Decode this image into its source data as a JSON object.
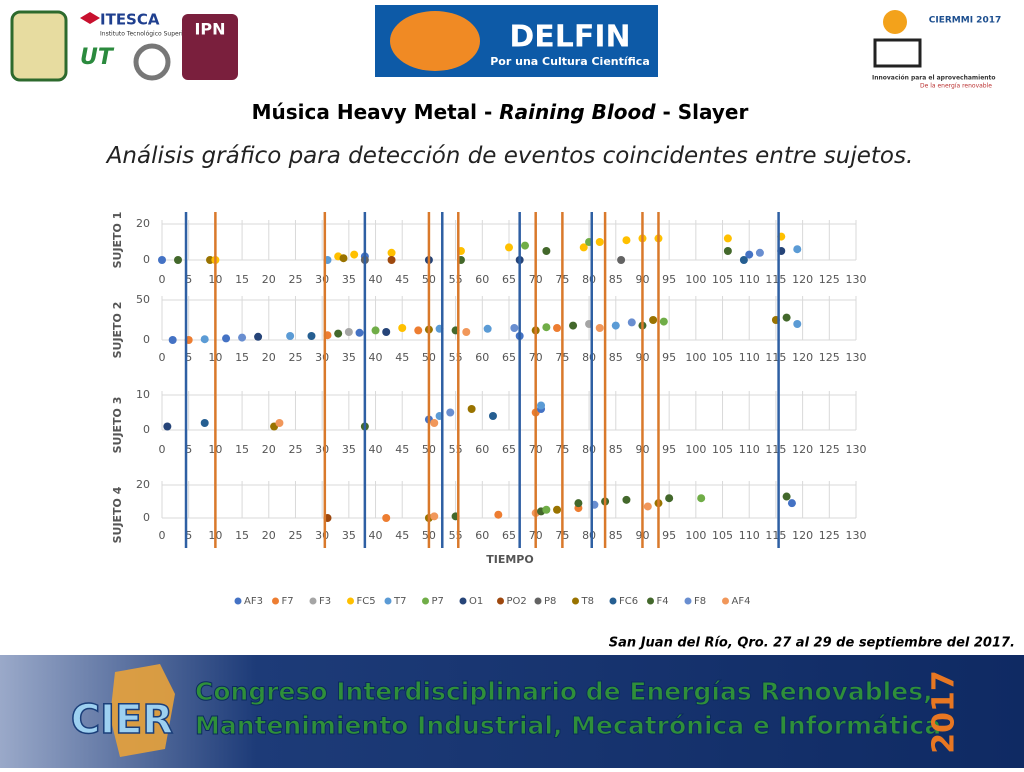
{
  "header": {
    "logo_itesca": "ITESCA",
    "logo_itesca_sub": "Instituto Tecnológico Superior de Cajeme",
    "logo_ut": "UT",
    "logo_ipn": "IPN",
    "delfin": "DELFIN",
    "delfin_sub": "Por una Cultura Científica",
    "ciermmi": "CIERMMI 2017",
    "ciermmi_sub1": "Innovación para el aprovechamiento",
    "ciermmi_sub2": "De la energía renovable"
  },
  "title": {
    "parts": [
      "Música Heavy Metal - ",
      "Raining Blood",
      " - Slayer"
    ]
  },
  "subtitle": "Análisis gráfico para detección de eventos coincidentes entre sujetos.",
  "legend": [
    {
      "name": "AF3",
      "color": "#4472c4"
    },
    {
      "name": "F7",
      "color": "#ed7d31"
    },
    {
      "name": "F3",
      "color": "#a5a5a5"
    },
    {
      "name": "FC5",
      "color": "#ffc000"
    },
    {
      "name": "T7",
      "color": "#5b9bd5"
    },
    {
      "name": "P7",
      "color": "#70ad47"
    },
    {
      "name": "O1",
      "color": "#264478"
    },
    {
      "name": "PO2",
      "color": "#9e480e"
    },
    {
      "name": "P8",
      "color": "#636363"
    },
    {
      "name": "T8",
      "color": "#997300"
    },
    {
      "name": "FC6",
      "color": "#255e91"
    },
    {
      "name": "F4",
      "color": "#43682b"
    },
    {
      "name": "F8",
      "color": "#698ed0"
    },
    {
      "name": "AF4",
      "color": "#f1975a"
    }
  ],
  "chart_data": [
    {
      "type": "scatter",
      "ylabel": "SUJETO 1",
      "xlim": [
        0,
        130
      ],
      "ylim": [
        0,
        20
      ],
      "yticks": [
        0,
        20
      ],
      "xticks": [
        0,
        5,
        10,
        15,
        20,
        25,
        30,
        35,
        40,
        45,
        50,
        55,
        60,
        65,
        70,
        75,
        80,
        85,
        90,
        95,
        100,
        105,
        110,
        115,
        120,
        125,
        130
      ],
      "points": [
        [
          0,
          0,
          0
        ],
        [
          3,
          0,
          11
        ],
        [
          9,
          0,
          9
        ],
        [
          10,
          0,
          3
        ],
        [
          31,
          0,
          4
        ],
        [
          33,
          2,
          3
        ],
        [
          34,
          1,
          9
        ],
        [
          36,
          3,
          3
        ],
        [
          38,
          2,
          0
        ],
        [
          38,
          0,
          8
        ],
        [
          43,
          4,
          3
        ],
        [
          43,
          0,
          7
        ],
        [
          50,
          0,
          6
        ],
        [
          56,
          5,
          3
        ],
        [
          56,
          0,
          11
        ],
        [
          65,
          7,
          3
        ],
        [
          67,
          0,
          6
        ],
        [
          68,
          8,
          5
        ],
        [
          72,
          5,
          11
        ],
        [
          79,
          7,
          3
        ],
        [
          80,
          10,
          5
        ],
        [
          82,
          10,
          3
        ],
        [
          86,
          0,
          8
        ],
        [
          87,
          11,
          3
        ],
        [
          90,
          12,
          3
        ],
        [
          93,
          12,
          3
        ],
        [
          106,
          12,
          3
        ],
        [
          106,
          5,
          11
        ],
        [
          109,
          0,
          10
        ],
        [
          110,
          3,
          0
        ],
        [
          112,
          4,
          12
        ],
        [
          116,
          13,
          3
        ],
        [
          116,
          5,
          6
        ],
        [
          119,
          6,
          4
        ]
      ]
    },
    {
      "type": "scatter",
      "ylabel": "SUJETO 2",
      "xlim": [
        0,
        130
      ],
      "ylim": [
        0,
        50
      ],
      "yticks": [
        0,
        50
      ],
      "xticks": [
        0,
        5,
        10,
        15,
        20,
        25,
        30,
        35,
        40,
        45,
        50,
        55,
        60,
        65,
        70,
        75,
        80,
        85,
        90,
        95,
        100,
        105,
        110,
        115,
        120,
        125,
        130
      ],
      "points": [
        [
          2,
          0,
          0
        ],
        [
          5,
          0,
          1
        ],
        [
          8,
          1,
          4
        ],
        [
          12,
          2,
          0
        ],
        [
          15,
          3,
          12
        ],
        [
          18,
          4,
          6
        ],
        [
          24,
          5,
          4
        ],
        [
          28,
          5,
          10
        ],
        [
          31,
          6,
          1
        ],
        [
          33,
          8,
          11
        ],
        [
          35,
          10,
          2
        ],
        [
          37,
          9,
          0
        ],
        [
          40,
          12,
          5
        ],
        [
          42,
          10,
          6
        ],
        [
          45,
          15,
          3
        ],
        [
          48,
          12,
          1
        ],
        [
          50,
          13,
          9
        ],
        [
          52,
          14,
          4
        ],
        [
          55,
          12,
          11
        ],
        [
          57,
          10,
          13
        ],
        [
          61,
          14,
          4
        ],
        [
          66,
          15,
          12
        ],
        [
          67,
          5,
          0
        ],
        [
          70,
          12,
          9
        ],
        [
          72,
          16,
          5
        ],
        [
          74,
          15,
          1
        ],
        [
          77,
          18,
          11
        ],
        [
          80,
          20,
          2
        ],
        [
          82,
          15,
          13
        ],
        [
          85,
          18,
          4
        ],
        [
          88,
          22,
          12
        ],
        [
          90,
          18,
          11
        ],
        [
          92,
          25,
          9
        ],
        [
          94,
          23,
          5
        ],
        [
          115,
          25,
          9
        ],
        [
          117,
          28,
          11
        ],
        [
          119,
          20,
          4
        ]
      ]
    },
    {
      "type": "scatter",
      "ylabel": "SUJETO 3",
      "xlim": [
        0,
        130
      ],
      "ylim": [
        0,
        10
      ],
      "yticks": [
        0,
        10
      ],
      "xticks": [
        0,
        5,
        10,
        15,
        20,
        25,
        30,
        35,
        40,
        45,
        50,
        55,
        60,
        65,
        70,
        75,
        80,
        85,
        90,
        95,
        100,
        105,
        110,
        115,
        120,
        125,
        130
      ],
      "points": [
        [
          1,
          1,
          6
        ],
        [
          8,
          2,
          10
        ],
        [
          21,
          1,
          9
        ],
        [
          22,
          2,
          13
        ],
        [
          38,
          1,
          11
        ],
        [
          50,
          3,
          0
        ],
        [
          51,
          2,
          13
        ],
        [
          52,
          4,
          4
        ],
        [
          54,
          5,
          12
        ],
        [
          58,
          6,
          9
        ],
        [
          62,
          4,
          10
        ],
        [
          70,
          5,
          1
        ],
        [
          71,
          6,
          0
        ],
        [
          71,
          7,
          4
        ]
      ]
    },
    {
      "type": "scatter",
      "ylabel": "SUJETO 4",
      "xlabel": "TIEMPO",
      "xlim": [
        0,
        130
      ],
      "ylim": [
        0,
        20
      ],
      "yticks": [
        0,
        20
      ],
      "xticks": [
        0,
        5,
        10,
        15,
        20,
        25,
        30,
        35,
        40,
        45,
        50,
        55,
        60,
        65,
        70,
        75,
        80,
        85,
        90,
        95,
        100,
        105,
        110,
        115,
        120,
        125,
        130
      ],
      "points": [
        [
          31,
          0,
          7
        ],
        [
          42,
          0,
          1
        ],
        [
          50,
          0,
          9
        ],
        [
          51,
          1,
          13
        ],
        [
          55,
          1,
          11
        ],
        [
          63,
          2,
          1
        ],
        [
          70,
          3,
          13
        ],
        [
          71,
          4,
          11
        ],
        [
          72,
          5,
          5
        ],
        [
          74,
          5,
          9
        ],
        [
          78,
          6,
          1
        ],
        [
          78,
          9,
          11
        ],
        [
          81,
          8,
          12
        ],
        [
          83,
          10,
          11
        ],
        [
          87,
          11,
          11
        ],
        [
          91,
          7,
          13
        ],
        [
          93,
          9,
          9
        ],
        [
          95,
          12,
          11
        ],
        [
          101,
          12,
          5
        ],
        [
          117,
          13,
          11
        ],
        [
          118,
          9,
          0
        ]
      ]
    }
  ],
  "event_lines": [
    {
      "x": 4.5,
      "color": "#2e5fa3"
    },
    {
      "x": 10,
      "color": "#d9792b"
    },
    {
      "x": 30.5,
      "color": "#d9792b"
    },
    {
      "x": 38,
      "color": "#2e5fa3"
    },
    {
      "x": 50,
      "color": "#d9792b"
    },
    {
      "x": 52.5,
      "color": "#2e5fa3"
    },
    {
      "x": 55.5,
      "color": "#d9792b"
    },
    {
      "x": 67,
      "color": "#2e5fa3"
    },
    {
      "x": 70,
      "color": "#d9792b"
    },
    {
      "x": 75,
      "color": "#d9792b"
    },
    {
      "x": 80.5,
      "color": "#2e5fa3"
    },
    {
      "x": 83,
      "color": "#d9792b"
    },
    {
      "x": 90,
      "color": "#d9792b"
    },
    {
      "x": 93,
      "color": "#d9792b"
    },
    {
      "x": 115.5,
      "color": "#2e5fa3"
    }
  ],
  "footer": {
    "date": "San Juan del Río, Qro. 27 al 29 de septiembre del 2017.",
    "cier": "CIER",
    "banner1": "Congreso Interdisciplinario de Energías Renovables,",
    "banner2": "Mantenimiento Industrial, Mecatrónica e Informática",
    "year": "2017"
  }
}
